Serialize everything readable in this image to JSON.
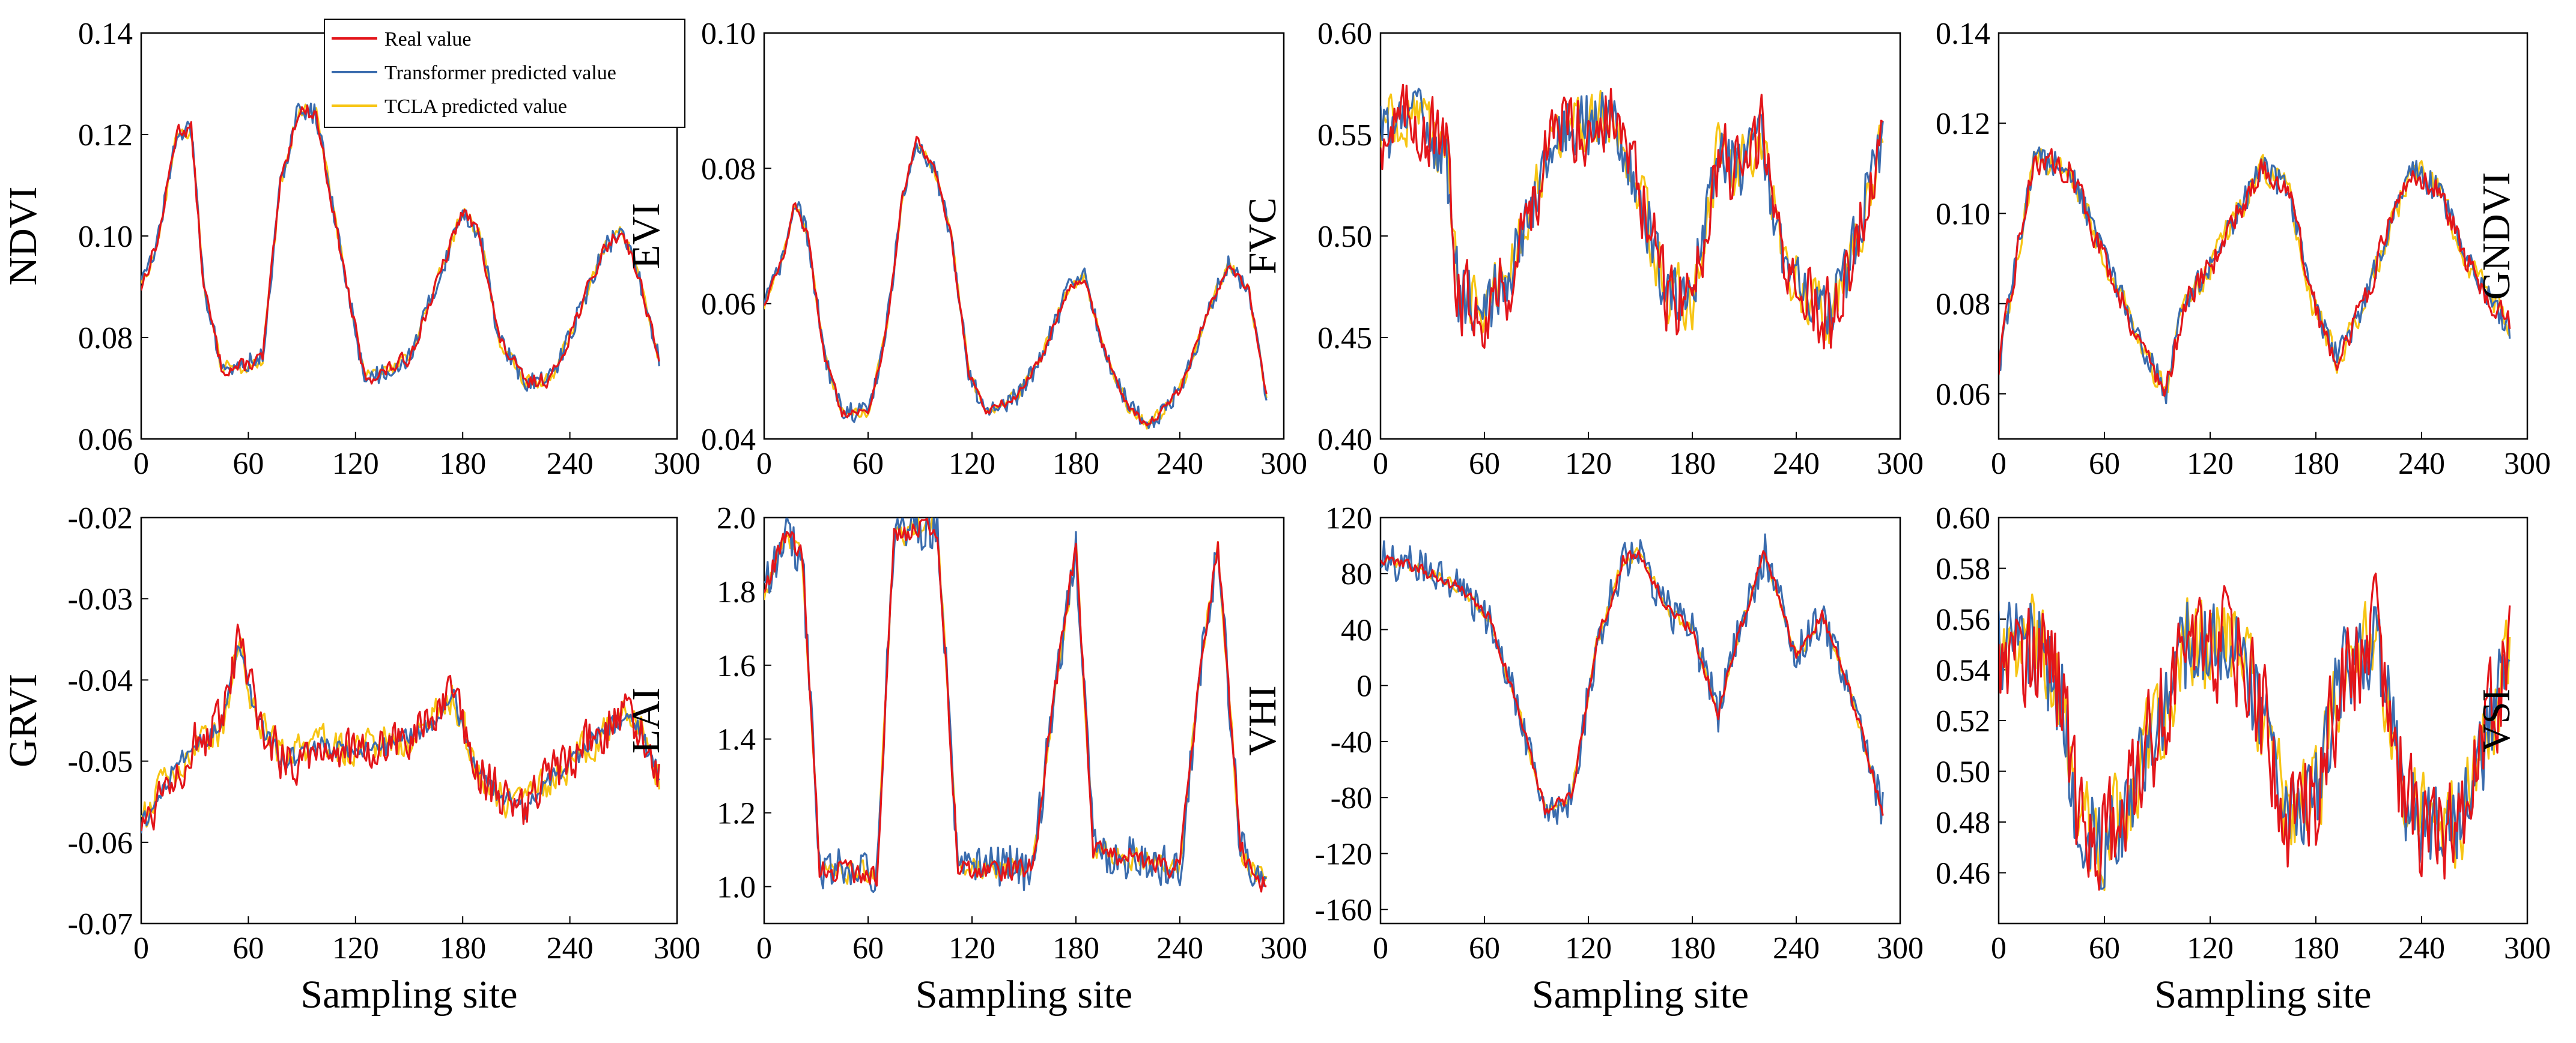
{
  "colors": {
    "real": "#e3151a",
    "transformer": "#3a6cae",
    "tcla": "#f7c514"
  },
  "legend": {
    "entries": [
      {
        "label": "Real value",
        "color_key": "real"
      },
      {
        "label": "Transformer predicted value",
        "color_key": "transformer"
      },
      {
        "label": "TCLA predicted value",
        "color_key": "tcla"
      }
    ]
  },
  "chart_data": [
    {
      "type": "line",
      "id": "ndvi",
      "ylabel": "NDVI",
      "xlabel": "",
      "ylim": [
        0.06,
        0.14
      ],
      "yticks": [
        "0.06",
        "0.08",
        "0.10",
        "0.12",
        "0.14"
      ],
      "xlim": [
        0,
        300
      ],
      "xticks": [
        "0",
        "60",
        "120",
        "180",
        "240",
        "300"
      ],
      "grid": false,
      "n": 290,
      "profile": [
        [
          0,
          0.09
        ],
        [
          10,
          0.1
        ],
        [
          20,
          0.121
        ],
        [
          28,
          0.121
        ],
        [
          35,
          0.09
        ],
        [
          45,
          0.074
        ],
        [
          55,
          0.074
        ],
        [
          68,
          0.076
        ],
        [
          78,
          0.11
        ],
        [
          88,
          0.125
        ],
        [
          98,
          0.124
        ],
        [
          110,
          0.1
        ],
        [
          125,
          0.072
        ],
        [
          135,
          0.073
        ],
        [
          150,
          0.076
        ],
        [
          165,
          0.09
        ],
        [
          180,
          0.105
        ],
        [
          190,
          0.1
        ],
        [
          200,
          0.08
        ],
        [
          215,
          0.071
        ],
        [
          230,
          0.072
        ],
        [
          245,
          0.085
        ],
        [
          260,
          0.098
        ],
        [
          270,
          0.101
        ],
        [
          280,
          0.09
        ],
        [
          290,
          0.076
        ]
      ],
      "noise": [
        0.002,
        0.002,
        0.002
      ]
    },
    {
      "type": "line",
      "id": "evi",
      "ylabel": "EVI",
      "xlabel": "",
      "ylim": [
        0.04,
        0.1
      ],
      "yticks": [
        "0.04",
        "0.06",
        "0.08",
        "0.10"
      ],
      "xlim": [
        0,
        300
      ],
      "xticks": [
        "0",
        "60",
        "120",
        "180",
        "240",
        "300"
      ],
      "grid": false,
      "n": 290,
      "profile": [
        [
          0,
          0.06
        ],
        [
          10,
          0.066
        ],
        [
          18,
          0.075
        ],
        [
          25,
          0.07
        ],
        [
          35,
          0.052
        ],
        [
          45,
          0.044
        ],
        [
          60,
          0.044
        ],
        [
          70,
          0.055
        ],
        [
          80,
          0.076
        ],
        [
          88,
          0.084
        ],
        [
          98,
          0.08
        ],
        [
          108,
          0.07
        ],
        [
          118,
          0.05
        ],
        [
          128,
          0.044
        ],
        [
          145,
          0.046
        ],
        [
          160,
          0.052
        ],
        [
          175,
          0.062
        ],
        [
          185,
          0.064
        ],
        [
          195,
          0.054
        ],
        [
          210,
          0.045
        ],
        [
          222,
          0.042
        ],
        [
          240,
          0.047
        ],
        [
          255,
          0.058
        ],
        [
          268,
          0.066
        ],
        [
          280,
          0.062
        ],
        [
          290,
          0.046
        ]
      ],
      "noise": [
        0.001,
        0.0015,
        0.0012
      ]
    },
    {
      "type": "line",
      "id": "fvc",
      "ylabel": "FVC",
      "xlabel": "",
      "ylim": [
        0.4,
        0.6
      ],
      "yticks": [
        "0.40",
        "0.45",
        "0.50",
        "0.55",
        "0.60"
      ],
      "xlim": [
        0,
        300
      ],
      "xticks": [
        "0",
        "60",
        "120",
        "180",
        "240",
        "300"
      ],
      "grid": false,
      "n": 290,
      "profile": [
        [
          0,
          0.55
        ],
        [
          20,
          0.56
        ],
        [
          38,
          0.54
        ],
        [
          45,
          0.47
        ],
        [
          60,
          0.465
        ],
        [
          75,
          0.48
        ],
        [
          90,
          0.525
        ],
        [
          105,
          0.555
        ],
        [
          120,
          0.555
        ],
        [
          135,
          0.56
        ],
        [
          150,
          0.52
        ],
        [
          165,
          0.47
        ],
        [
          180,
          0.47
        ],
        [
          195,
          0.54
        ],
        [
          205,
          0.53
        ],
        [
          220,
          0.55
        ],
        [
          230,
          0.5
        ],
        [
          245,
          0.47
        ],
        [
          260,
          0.46
        ],
        [
          275,
          0.5
        ],
        [
          290,
          0.55
        ]
      ],
      "noise": [
        0.025,
        0.015,
        0.02
      ]
    },
    {
      "type": "line",
      "id": "gndvi",
      "ylabel": "GNDVI",
      "xlabel": "",
      "ylim": [
        0.05,
        0.14
      ],
      "yticks": [
        "0.06",
        "0.08",
        "0.10",
        "0.12",
        "0.14"
      ],
      "xlim": [
        0,
        300
      ],
      "xticks": [
        "0",
        "60",
        "120",
        "180",
        "240",
        "300"
      ],
      "grid": false,
      "n": 290,
      "profile": [
        [
          0,
          0.065
        ],
        [
          10,
          0.09
        ],
        [
          20,
          0.112
        ],
        [
          40,
          0.11
        ],
        [
          60,
          0.09
        ],
        [
          80,
          0.072
        ],
        [
          95,
          0.06
        ],
        [
          105,
          0.08
        ],
        [
          120,
          0.088
        ],
        [
          135,
          0.1
        ],
        [
          150,
          0.11
        ],
        [
          165,
          0.105
        ],
        [
          178,
          0.08
        ],
        [
          192,
          0.068
        ],
        [
          205,
          0.078
        ],
        [
          220,
          0.095
        ],
        [
          235,
          0.11
        ],
        [
          250,
          0.105
        ],
        [
          265,
          0.09
        ],
        [
          280,
          0.08
        ],
        [
          290,
          0.075
        ]
      ],
      "noise": [
        0.004,
        0.003,
        0.004
      ]
    },
    {
      "type": "line",
      "id": "grvi",
      "ylabel": "GRVI",
      "xlabel": "Sampling site",
      "ylim": [
        -0.07,
        -0.02
      ],
      "yticks": [
        "-0.07",
        "-0.06",
        "-0.05",
        "-0.04",
        "-0.03",
        "-0.02"
      ],
      "xlim": [
        0,
        300
      ],
      "xticks": [
        "0",
        "60",
        "120",
        "180",
        "240",
        "300"
      ],
      "grid": false,
      "n": 290,
      "profile": [
        [
          0,
          -0.058
        ],
        [
          15,
          -0.052
        ],
        [
          30,
          -0.048
        ],
        [
          45,
          -0.046
        ],
        [
          55,
          -0.035
        ],
        [
          65,
          -0.045
        ],
        [
          80,
          -0.05
        ],
        [
          100,
          -0.048
        ],
        [
          120,
          -0.049
        ],
        [
          140,
          -0.048
        ],
        [
          160,
          -0.046
        ],
        [
          175,
          -0.042
        ],
        [
          185,
          -0.05
        ],
        [
          200,
          -0.054
        ],
        [
          215,
          -0.056
        ],
        [
          230,
          -0.052
        ],
        [
          245,
          -0.049
        ],
        [
          260,
          -0.046
        ],
        [
          275,
          -0.044
        ],
        [
          290,
          -0.052
        ]
      ],
      "noise": [
        0.004,
        0.0012,
        0.003
      ]
    },
    {
      "type": "line",
      "id": "lai",
      "ylabel": "LAI",
      "xlabel": "Sampling site",
      "ylim": [
        0.9,
        2.0
      ],
      "yticks": [
        "1.0",
        "1.2",
        "1.4",
        "1.6",
        "1.8",
        "2.0"
      ],
      "xlim": [
        0,
        300
      ],
      "xticks": [
        "0",
        "60",
        "120",
        "180",
        "240",
        "300"
      ],
      "grid": false,
      "n": 290,
      "profile": [
        [
          0,
          1.8
        ],
        [
          12,
          1.95
        ],
        [
          22,
          1.9
        ],
        [
          32,
          1.05
        ],
        [
          65,
          1.03
        ],
        [
          75,
          1.95
        ],
        [
          100,
          1.98
        ],
        [
          112,
          1.05
        ],
        [
          155,
          1.05
        ],
        [
          170,
          1.6
        ],
        [
          180,
          1.92
        ],
        [
          190,
          1.1
        ],
        [
          240,
          1.05
        ],
        [
          252,
          1.6
        ],
        [
          262,
          1.92
        ],
        [
          275,
          1.1
        ],
        [
          290,
          1.0
        ]
      ],
      "noise": [
        0.04,
        0.06,
        0.04
      ]
    },
    {
      "type": "line",
      "id": "vhi",
      "ylabel": "VHI",
      "xlabel": "Sampling site",
      "ylim": [
        -170,
        120
      ],
      "yticks": [
        "-160",
        "-120",
        "-80",
        "-40",
        "0",
        "40",
        "80",
        "120"
      ],
      "xlim": [
        0,
        300
      ],
      "xticks": [
        "0",
        "60",
        "120",
        "180",
        "240",
        "300"
      ],
      "grid": false,
      "n": 290,
      "profile": [
        [
          0,
          90
        ],
        [
          20,
          85
        ],
        [
          45,
          70
        ],
        [
          62,
          50
        ],
        [
          78,
          -10
        ],
        [
          95,
          -90
        ],
        [
          110,
          -80
        ],
        [
          125,
          30
        ],
        [
          140,
          90
        ],
        [
          150,
          95
        ],
        [
          165,
          55
        ],
        [
          180,
          40
        ],
        [
          195,
          -20
        ],
        [
          205,
          30
        ],
        [
          222,
          95
        ],
        [
          240,
          20
        ],
        [
          255,
          50
        ],
        [
          270,
          0
        ],
        [
          290,
          -90
        ]
      ],
      "noise": [
        6,
        14,
        6
      ]
    },
    {
      "type": "line",
      "id": "vsi",
      "ylabel": "VSI",
      "xlabel": "Sampling site",
      "ylim": [
        0.44,
        0.6
      ],
      "yticks": [
        "0.46",
        "0.48",
        "0.50",
        "0.52",
        "0.54",
        "0.56",
        "0.58",
        "0.60"
      ],
      "xlim": [
        0,
        300
      ],
      "xticks": [
        "0",
        "60",
        "120",
        "180",
        "240",
        "300"
      ],
      "grid": false,
      "n": 290,
      "profile": [
        [
          0,
          0.55
        ],
        [
          20,
          0.55
        ],
        [
          35,
          0.53
        ],
        [
          45,
          0.48
        ],
        [
          60,
          0.47
        ],
        [
          75,
          0.49
        ],
        [
          90,
          0.52
        ],
        [
          105,
          0.55
        ],
        [
          120,
          0.55
        ],
        [
          135,
          0.55
        ],
        [
          150,
          0.52
        ],
        [
          165,
          0.48
        ],
        [
          180,
          0.49
        ],
        [
          195,
          0.54
        ],
        [
          215,
          0.55
        ],
        [
          230,
          0.49
        ],
        [
          245,
          0.475
        ],
        [
          260,
          0.48
        ],
        [
          275,
          0.51
        ],
        [
          290,
          0.55
        ]
      ],
      "noise": [
        0.03,
        0.018,
        0.025
      ]
    }
  ]
}
